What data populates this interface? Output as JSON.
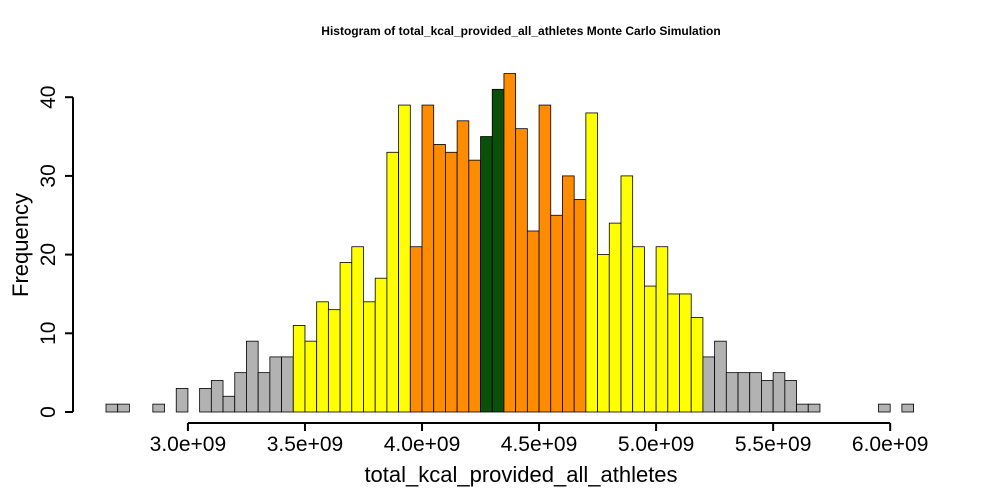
{
  "chart_data": {
    "type": "bar",
    "title": "Histogram of  total_kcal_provided_all_athletes  Monte Carlo Simulation",
    "xlabel": "total_kcal_provided_all_athletes",
    "ylabel": "Frequency",
    "bin_start": 2650000000,
    "bin_width": 50000000,
    "values": [
      1,
      1,
      0,
      0,
      1,
      0,
      3,
      0,
      3,
      4,
      2,
      5,
      9,
      5,
      7,
      7,
      11,
      9,
      14,
      13,
      19,
      21,
      14,
      17,
      33,
      39,
      21,
      39,
      34,
      33,
      37,
      32,
      35,
      41,
      43,
      36,
      23,
      39,
      25,
      30,
      27,
      38,
      20,
      24,
      30,
      21,
      16,
      21,
      15,
      15,
      12,
      7,
      9,
      5,
      5,
      5,
      4,
      5,
      4,
      1,
      1,
      0,
      0,
      0,
      0,
      0,
      1,
      0,
      1
    ],
    "band_colors": {
      "outer": "#b2b2b2",
      "mid": "#ffff00",
      "inner": "#ff8c00",
      "center": "#0a500a"
    },
    "bands": [
      "outer",
      "outer",
      "outer",
      "outer",
      "outer",
      "outer",
      "outer",
      "outer",
      "outer",
      "outer",
      "outer",
      "outer",
      "outer",
      "outer",
      "outer",
      "outer",
      "mid",
      "mid",
      "mid",
      "mid",
      "mid",
      "mid",
      "mid",
      "mid",
      "mid",
      "mid",
      "inner",
      "inner",
      "inner",
      "inner",
      "inner",
      "inner",
      "center",
      "center",
      "inner",
      "inner",
      "inner",
      "inner",
      "inner",
      "inner",
      "inner",
      "mid",
      "mid",
      "mid",
      "mid",
      "mid",
      "mid",
      "mid",
      "mid",
      "mid",
      "mid",
      "outer",
      "outer",
      "outer",
      "outer",
      "outer",
      "outer",
      "outer",
      "outer",
      "outer",
      "outer",
      "outer",
      "outer",
      "outer",
      "outer",
      "outer",
      "outer",
      "outer",
      "outer"
    ],
    "xlim": [
      2650000000,
      6200000000
    ],
    "ylim": [
      0,
      43
    ],
    "x_ticks": [
      3000000000,
      3500000000,
      4000000000,
      4500000000,
      5000000000,
      5500000000,
      6000000000
    ],
    "x_tick_labels": [
      "3.0e+09",
      "3.5e+09",
      "4.0e+09",
      "4.5e+09",
      "5.0e+09",
      "5.5e+09",
      "6.0e+09"
    ],
    "y_ticks": [
      0,
      10,
      20,
      30,
      40
    ],
    "y_tick_labels": [
      "0",
      "10",
      "20",
      "30",
      "40"
    ]
  }
}
